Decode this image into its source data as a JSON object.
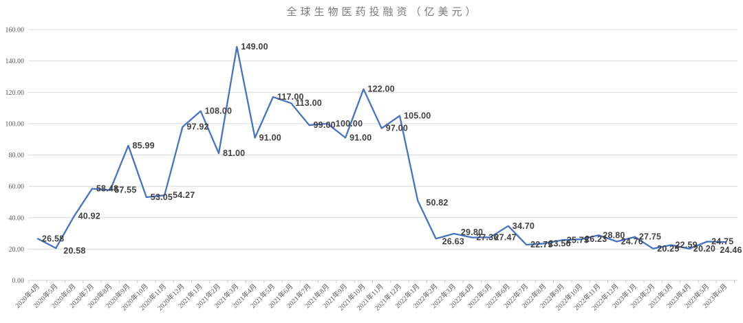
{
  "chart_data": {
    "type": "line",
    "title": "全球生物医药投融资（亿美元）",
    "categories": [
      "2020年4月",
      "2020年5月",
      "2020年6月",
      "2020年7月",
      "2020年8月",
      "2020年9月",
      "2020年10月",
      "2020年11月",
      "2020年12月",
      "2021年1月",
      "2021年2月",
      "2021年3月",
      "2021年4月",
      "2021年5月",
      "2021年6月",
      "2021年7月",
      "2021年8月",
      "2021年9月",
      "2021年10月",
      "2021年11月",
      "2021年12月",
      "2022年1月",
      "2022年2月",
      "2022年3月",
      "2022年4月",
      "2022年5月",
      "2022年6月",
      "2022年7月",
      "2022年8月",
      "2022年9月",
      "2022年10月",
      "2022年11月",
      "2022年12月",
      "2023年1月",
      "2023年2月",
      "2023年3月",
      "2023年4月",
      "2023年5月",
      "2023年6月"
    ],
    "values": [
      26.58,
      20.58,
      40.92,
      58.48,
      57.55,
      85.99,
      53.05,
      54.27,
      97.92,
      108.0,
      81.0,
      149.0,
      91.0,
      117.0,
      113.0,
      99.0,
      100.0,
      91.0,
      122.0,
      97.0,
      105.0,
      50.82,
      26.63,
      29.8,
      27.36,
      27.47,
      34.7,
      22.75,
      23.56,
      25.75,
      26.23,
      28.8,
      24.76,
      27.75,
      20.25,
      22.59,
      20.2,
      24.75,
      24.46
    ],
    "ylim": [
      0,
      160
    ],
    "ytick_step": 20,
    "ytick_labels": [
      "0.00",
      "20.00",
      "40.00",
      "60.00",
      "80.00",
      "100.00",
      "120.00",
      "140.00",
      "160.00"
    ],
    "value_decimals": 2,
    "grid": "horizontal-only",
    "legend": "none",
    "data_labels": "right-of-point",
    "label_offset_overrides": {
      "1": [
        11,
        8
      ],
      "7": [
        12,
        4
      ],
      "16": [
        12,
        4
      ],
      "21": [
        12,
        7
      ],
      "22": [
        9,
        8
      ],
      "23": [
        10,
        2
      ],
      "38": [
        -8,
        16
      ]
    },
    "colors": {
      "line": "#4472C4",
      "data_label": "#404040",
      "axis_label": "#595959",
      "gridline": "#D9D9D9",
      "axis_line": "#D2D2D2",
      "tick": "#C9C9C9",
      "title": "#7A7A7A",
      "background": "#FFFFFF"
    }
  }
}
